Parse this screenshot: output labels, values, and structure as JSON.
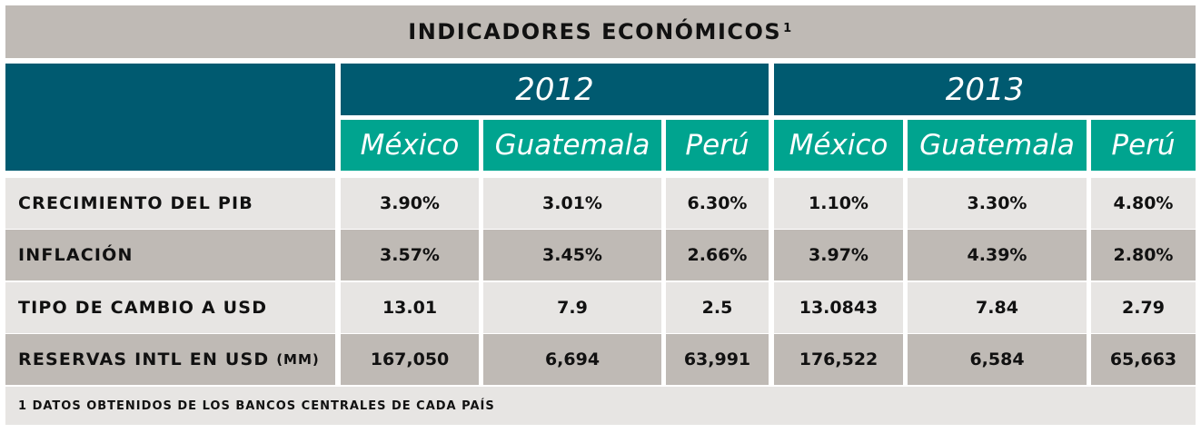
{
  "title": {
    "text": "INDICADORES ECONÓMICOS",
    "sup": "1"
  },
  "years": [
    "2012",
    "2013"
  ],
  "countries": [
    "México",
    "Guatemala",
    "Perú",
    "México",
    "Guatemala",
    "Perú"
  ],
  "rows": [
    {
      "label": "CRECIMIENTO DEL PIB",
      "label_small": "",
      "values": [
        "3.90%",
        "3.01%",
        "6.30%",
        "1.10%",
        "3.30%",
        "4.80%"
      ]
    },
    {
      "label": "INFLACIÓN",
      "label_small": "",
      "values": [
        "3.57%",
        "3.45%",
        "2.66%",
        "3.97%",
        "4.39%",
        "2.80%"
      ]
    },
    {
      "label": "TIPO DE CAMBIO A USD",
      "label_small": "",
      "values": [
        "13.01",
        "7.9",
        "2.5",
        "13.0843",
        "7.84",
        "2.79"
      ]
    },
    {
      "label": "RESERVAS INTL EN USD",
      "label_small": "(MM)",
      "values": [
        "167,050",
        "6,694",
        "63,991",
        "176,522",
        "6,584",
        "65,663"
      ]
    }
  ],
  "footnote": "1 DATOS OBTENIDOS DE LOS BANCOS CENTRALES DE CADA PAÍS",
  "colors": {
    "dark_teal": "#005a70",
    "teal": "#00a48f",
    "gray": "#bfbab5",
    "light_gray": "#e7e5e3"
  }
}
